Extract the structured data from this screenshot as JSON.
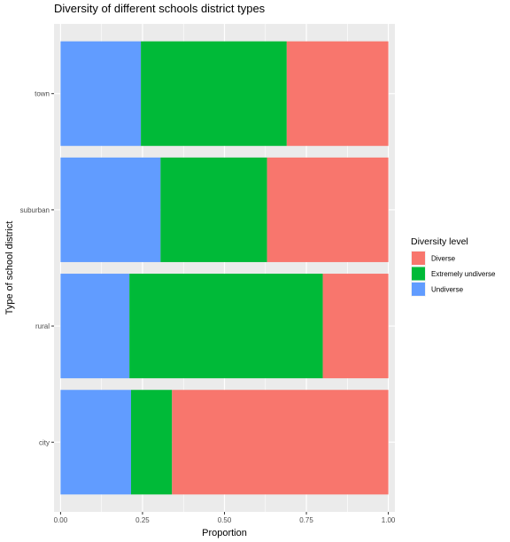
{
  "chart_data": {
    "type": "bar",
    "orientation": "horizontal",
    "stacked": true,
    "title": "Diversity of different schools district types",
    "xlabel": "Proportion",
    "ylabel": "Type of school district",
    "xlim": [
      -0.02,
      1.02
    ],
    "x_ticks": [
      0,
      0.25,
      0.5,
      0.75,
      1
    ],
    "x_tick_labels": [
      "0.00",
      "0.25",
      "0.50",
      "0.75",
      "1.00"
    ],
    "categories": [
      "city",
      "rural",
      "suburban",
      "town"
    ],
    "grid": true,
    "legend": {
      "title": "Diversity level",
      "position": "right",
      "entries": [
        "Diverse",
        "Extremely undiverse",
        "Undiverse"
      ]
    },
    "stack_order": [
      "Undiverse",
      "Extremely undiverse",
      "Diverse"
    ],
    "series": [
      {
        "name": "Diverse",
        "color": "#F8766D",
        "values": [
          0.66,
          0.2,
          0.37,
          0.31
        ]
      },
      {
        "name": "Extremely undiverse",
        "color": "#00BA38",
        "values": [
          0.125,
          0.59,
          0.325,
          0.445
        ]
      },
      {
        "name": "Undiverse",
        "color": "#619CFF",
        "values": [
          0.215,
          0.21,
          0.305,
          0.245
        ]
      }
    ]
  }
}
